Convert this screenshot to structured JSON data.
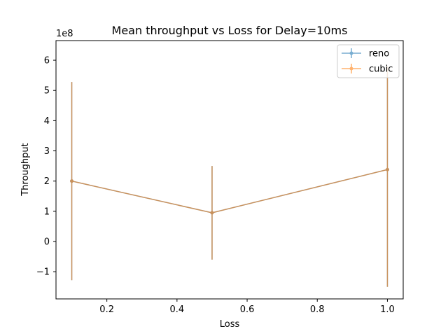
{
  "chart_data": {
    "type": "line",
    "title": "Mean throughput vs Loss for Delay=10ms",
    "xlabel": "Loss",
    "ylabel": "Throughput",
    "y_offset_label": "1e8",
    "xlim": [
      0.055,
      1.045
    ],
    "ylim": [
      -1.9,
      6.65
    ],
    "x_ticks": [
      0.2,
      0.4,
      0.6,
      0.8,
      1.0
    ],
    "x_tick_labels": [
      "0.2",
      "0.4",
      "0.6",
      "0.8",
      "1.0"
    ],
    "y_ticks": [
      -1,
      0,
      1,
      2,
      3,
      4,
      5,
      6
    ],
    "y_tick_labels": [
      "−1",
      "0",
      "1",
      "2",
      "3",
      "4",
      "5",
      "6"
    ],
    "grid": false,
    "legend": "top-right",
    "x": [
      0.1,
      0.5,
      1.0
    ],
    "series": [
      {
        "name": "reno",
        "color": "#1f77b4",
        "values": [
          2.0,
          0.95,
          2.38
        ],
        "error_low": [
          -1.28,
          -0.6,
          -1.5
        ],
        "error_high": [
          5.28,
          2.5,
          5.8
        ]
      },
      {
        "name": "cubic",
        "color": "#ff7f0e",
        "values": [
          2.0,
          0.95,
          2.38
        ],
        "error_low": [
          -1.28,
          -0.6,
          -1.5
        ],
        "error_high": [
          5.28,
          2.5,
          5.8
        ]
      }
    ]
  }
}
